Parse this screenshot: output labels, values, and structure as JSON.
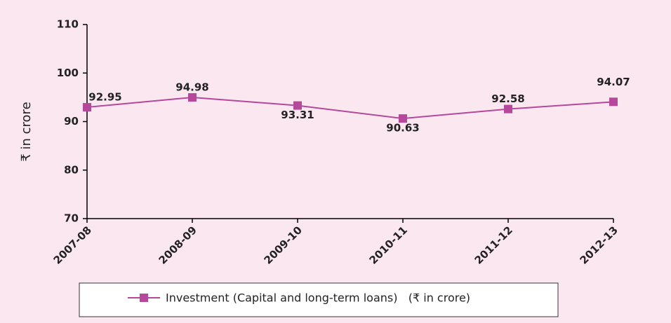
{
  "chart_data": {
    "type": "line",
    "y_label": "₹ in crore",
    "categories": [
      "2007-08",
      "2008-09",
      "2009-10",
      "2010-11",
      "2011-12",
      "2012-13"
    ],
    "series": [
      {
        "name": "Investment (Capital and long-term loans)   (₹ in crore)",
        "color": "#b5489a",
        "values": [
          92.95,
          94.98,
          93.31,
          90.63,
          92.58,
          94.07
        ]
      }
    ],
    "ylim": [
      70,
      110
    ],
    "yticks": [
      70,
      80,
      90,
      100,
      110
    ],
    "grid": false,
    "legend": "bottom"
  }
}
